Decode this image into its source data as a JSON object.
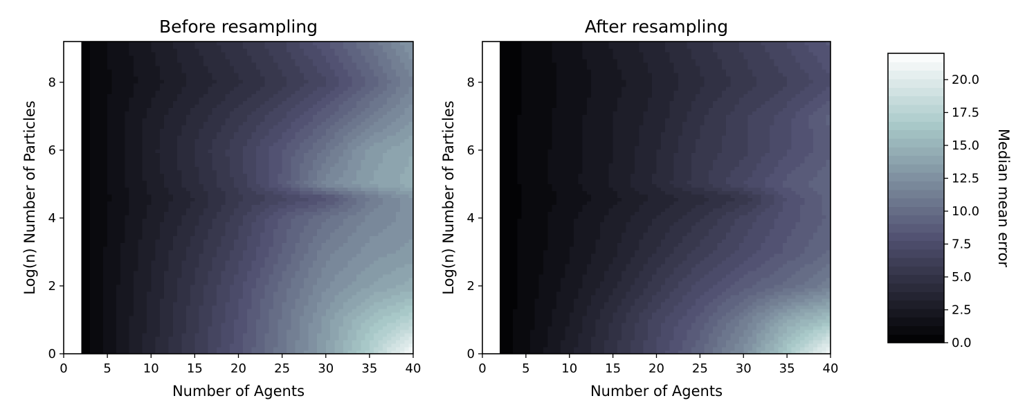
{
  "chart_data": [
    {
      "type": "heatmap",
      "title": "Before resampling",
      "xlabel": "Number of Agents",
      "ylabel": "Log(n) Number of Particles",
      "xlim": [
        0,
        40
      ],
      "ylim": [
        0,
        9.2
      ],
      "x_ticks": [
        "0",
        "5",
        "10",
        "15",
        "20",
        "25",
        "30",
        "35",
        "40"
      ],
      "y_ticks": [
        "0",
        "2",
        "4",
        "6",
        "8"
      ],
      "colormap": "bone",
      "x": [
        2,
        5,
        10,
        15,
        20,
        25,
        30,
        35,
        40
      ],
      "y": [
        0,
        1,
        2,
        3,
        4,
        4.6,
        5,
        6,
        7,
        8,
        9.2
      ],
      "z": [
        [
          0.3,
          1.6,
          3.6,
          5.9,
          8.2,
          10.8,
          13.6,
          17.2,
          21.6
        ],
        [
          0.3,
          1.5,
          3.5,
          5.6,
          7.9,
          10.5,
          13.2,
          15.8,
          17.5
        ],
        [
          0.3,
          1.5,
          3.3,
          5.3,
          7.5,
          10.0,
          12.2,
          13.6,
          14.6
        ],
        [
          0.3,
          1.4,
          3.1,
          4.9,
          6.8,
          9.1,
          11.4,
          12.6,
          13.2
        ],
        [
          0.3,
          1.3,
          2.8,
          4.3,
          6.2,
          8.6,
          10.3,
          11.8,
          12.6
        ],
        [
          0.3,
          1.2,
          2.6,
          3.9,
          5.6,
          6.9,
          8.1,
          11.0,
          12.9
        ],
        [
          0.3,
          1.3,
          2.8,
          4.3,
          6.0,
          8.6,
          12.0,
          13.6,
          14.6
        ],
        [
          0.3,
          1.3,
          3.0,
          4.6,
          6.3,
          8.4,
          10.6,
          13.2,
          14.2
        ],
        [
          0.3,
          1.3,
          2.8,
          4.1,
          5.5,
          7.0,
          8.9,
          11.0,
          12.9
        ],
        [
          0.3,
          1.2,
          2.3,
          3.4,
          4.4,
          5.6,
          7.0,
          9.2,
          11.6
        ],
        [
          0.3,
          1.3,
          2.6,
          3.9,
          5.1,
          6.4,
          8.3,
          10.4,
          13.1
        ]
      ]
    },
    {
      "type": "heatmap",
      "title": "After resampling",
      "xlabel": "Number of Agents",
      "ylabel": "Log(n) Number of Particles",
      "xlim": [
        0,
        40
      ],
      "ylim": [
        0,
        9.2
      ],
      "x_ticks": [
        "0",
        "5",
        "10",
        "15",
        "20",
        "25",
        "30",
        "35",
        "40"
      ],
      "y_ticks": [
        "0",
        "2",
        "4",
        "6",
        "8"
      ],
      "colormap": "bone",
      "x": [
        2,
        5,
        10,
        15,
        20,
        25,
        30,
        35,
        40
      ],
      "y": [
        0,
        1,
        2,
        3,
        4,
        4.6,
        5,
        6,
        7,
        8,
        9.2
      ],
      "z": [
        [
          0.2,
          1.2,
          3.0,
          5.0,
          7.2,
          9.6,
          12.5,
          16.6,
          21.5
        ],
        [
          0.2,
          1.0,
          2.6,
          4.6,
          6.8,
          8.6,
          11.1,
          14.2,
          16.0
        ],
        [
          0.2,
          0.9,
          2.2,
          3.7,
          5.6,
          7.4,
          8.8,
          10.0,
          11.4
        ],
        [
          0.2,
          0.8,
          1.9,
          3.1,
          4.6,
          6.1,
          7.4,
          8.6,
          9.8
        ],
        [
          0.2,
          0.8,
          1.8,
          2.8,
          3.9,
          5.1,
          6.7,
          8.1,
          9.2
        ],
        [
          0.2,
          0.7,
          1.5,
          2.4,
          3.4,
          4.2,
          5.3,
          7.8,
          9.4
        ],
        [
          0.2,
          0.8,
          1.7,
          2.7,
          4.0,
          5.6,
          7.1,
          8.6,
          9.6
        ],
        [
          0.2,
          0.8,
          1.7,
          2.6,
          3.8,
          5.4,
          6.3,
          7.7,
          8.9
        ],
        [
          0.2,
          0.8,
          1.6,
          2.6,
          3.5,
          5.0,
          6.3,
          7.5,
          9.2
        ],
        [
          0.2,
          0.7,
          1.5,
          2.3,
          3.3,
          4.4,
          5.5,
          6.4,
          7.6
        ],
        [
          0.2,
          0.8,
          1.7,
          2.7,
          3.7,
          4.9,
          6.0,
          7.2,
          8.6
        ]
      ]
    }
  ],
  "colorbar": {
    "label": "Median mean error",
    "min": 0,
    "max": 22,
    "ticks": [
      {
        "value": 0.0,
        "label": "0.0"
      },
      {
        "value": 2.5,
        "label": "2.5"
      },
      {
        "value": 5.0,
        "label": "5.0"
      },
      {
        "value": 7.5,
        "label": "7.5"
      },
      {
        "value": 10.0,
        "label": "10.0"
      },
      {
        "value": 12.5,
        "label": "12.5"
      },
      {
        "value": 15.0,
        "label": "15.0"
      },
      {
        "value": 17.5,
        "label": "17.5"
      },
      {
        "value": 20.0,
        "label": "20.0"
      }
    ]
  }
}
